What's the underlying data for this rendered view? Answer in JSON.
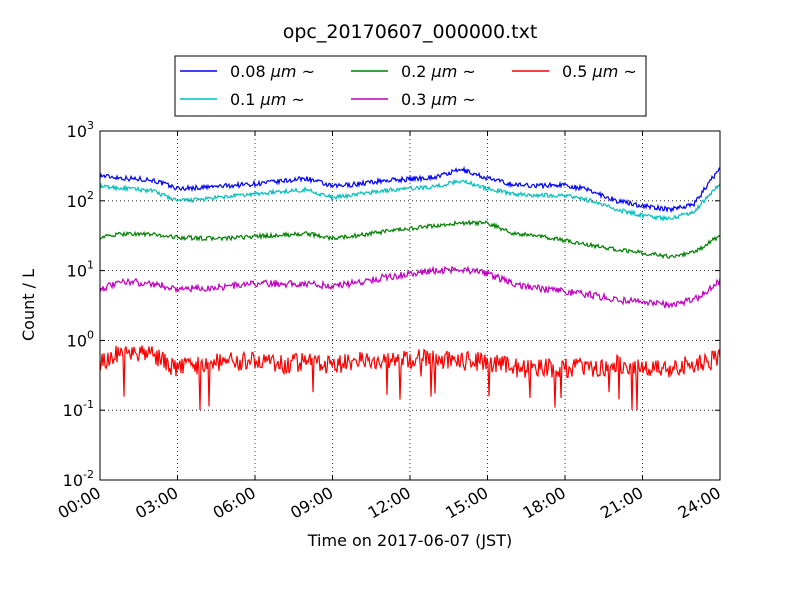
{
  "chart_data": {
    "type": "line",
    "title": "opc_20170607_000000.txt",
    "xlabel": "Time on 2017-06-07 (JST)",
    "ylabel": "Count / L",
    "yscale": "log",
    "ylim": [
      0.01,
      1000
    ],
    "xlim": [
      "2017-06-07 00:00",
      "2017-06-08 00:00"
    ],
    "grid": true,
    "legend_position": "top-center",
    "x_ticks": [
      "00:00",
      "03:00",
      "06:00",
      "09:00",
      "12:00",
      "15:00",
      "18:00",
      "21:00",
      "24:00"
    ],
    "y_ticks": [
      {
        "base": "10",
        "exp": "-2"
      },
      {
        "base": "10",
        "exp": "-1"
      },
      {
        "base": "10",
        "exp": "0"
      },
      {
        "base": "10",
        "exp": "1"
      },
      {
        "base": "10",
        "exp": "2"
      },
      {
        "base": "10",
        "exp": "3"
      }
    ],
    "x": [
      "00:00",
      "01:00",
      "02:00",
      "03:00",
      "04:00",
      "05:00",
      "06:00",
      "07:00",
      "08:00",
      "09:00",
      "10:00",
      "11:00",
      "12:00",
      "13:00",
      "14:00",
      "15:00",
      "16:00",
      "17:00",
      "18:00",
      "19:00",
      "20:00",
      "21:00",
      "22:00",
      "23:00",
      "24:00"
    ],
    "series": [
      {
        "name_prefix": "0.08 ",
        "unit": "μm",
        "suffix": " ~",
        "color": "#0000ff",
        "values": [
          230,
          210,
          200,
          150,
          155,
          165,
          175,
          190,
          210,
          160,
          175,
          195,
          205,
          220,
          280,
          210,
          170,
          165,
          170,
          140,
          100,
          85,
          75,
          90,
          300
        ]
      },
      {
        "name_prefix": "0.1 ",
        "unit": "μm",
        "suffix": " ~",
        "color": "#00bfbf",
        "values": [
          160,
          150,
          140,
          100,
          105,
          115,
          125,
          135,
          145,
          110,
          125,
          140,
          150,
          160,
          195,
          150,
          125,
          120,
          120,
          100,
          75,
          62,
          55,
          70,
          180
        ]
      },
      {
        "name_prefix": "0.2 ",
        "unit": "μm",
        "suffix": " ~",
        "color": "#008000",
        "values": [
          30,
          34,
          33,
          30,
          29,
          29,
          31,
          32,
          34,
          29,
          32,
          36,
          40,
          44,
          48,
          48,
          34,
          31,
          27,
          23,
          20,
          18,
          16,
          18,
          32
        ]
      },
      {
        "name_prefix": "0.3 ",
        "unit": "μm",
        "suffix": " ~",
        "color": "#bf00bf",
        "values": [
          5.5,
          7.0,
          6.5,
          5.5,
          5.5,
          6.0,
          6.5,
          6.5,
          6.5,
          6.0,
          6.8,
          8.0,
          9.0,
          10.0,
          10.5,
          9.0,
          6.5,
          5.5,
          5.0,
          4.5,
          3.8,
          3.5,
          3.2,
          3.8,
          7.0
        ]
      },
      {
        "name_prefix": "0.5 ",
        "unit": "μm",
        "suffix": " ~",
        "color": "#ff0000",
        "values": [
          0.5,
          0.7,
          0.6,
          0.4,
          0.45,
          0.5,
          0.5,
          0.45,
          0.5,
          0.45,
          0.5,
          0.55,
          0.55,
          0.55,
          0.5,
          0.5,
          0.4,
          0.4,
          0.4,
          0.4,
          0.45,
          0.4,
          0.4,
          0.45,
          0.55
        ]
      }
    ]
  }
}
